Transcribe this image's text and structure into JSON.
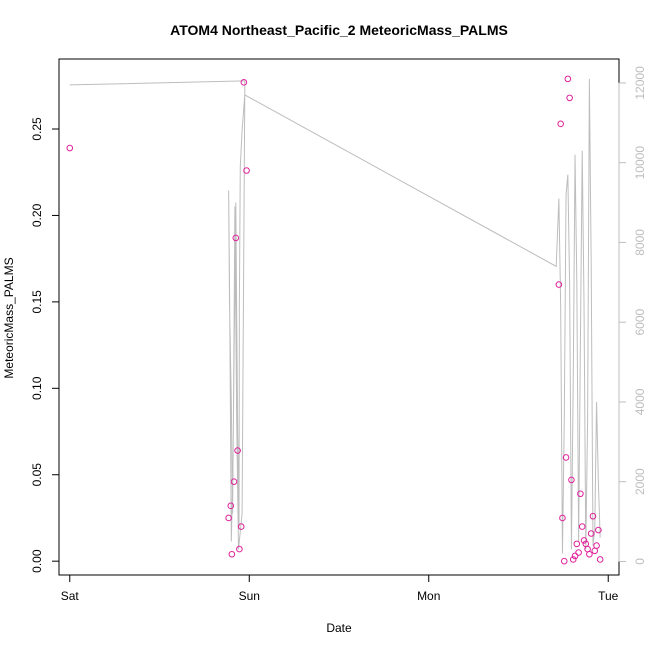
{
  "chart_data": {
    "type": "scatter",
    "title": "ATOM4 Northeast_Pacific_2 MeteoricMass_PALMS",
    "xlabel": "Date",
    "ylabel": "MeteoricMass_PALMS",
    "x_axis": {
      "unit": "days since Saturday 00:00",
      "ticks": [
        {
          "value": 0,
          "label": "Sat"
        },
        {
          "value": 1,
          "label": "Sun"
        },
        {
          "value": 2,
          "label": "Mon"
        },
        {
          "value": 3,
          "label": "Tue"
        }
      ],
      "xlim": [
        -0.06,
        3.06
      ]
    },
    "y_axis_left": {
      "ticks": [
        {
          "value": 0.0,
          "label": "0.00"
        },
        {
          "value": 0.05,
          "label": "0.05"
        },
        {
          "value": 0.1,
          "label": "0.10"
        },
        {
          "value": 0.15,
          "label": "0.15"
        },
        {
          "value": 0.2,
          "label": "0.20"
        },
        {
          "value": 0.25,
          "label": "0.25"
        }
      ],
      "ylim": [
        -0.008,
        0.2905
      ]
    },
    "y_axis_right": {
      "ticks": [
        {
          "value": 0,
          "label": "0"
        },
        {
          "value": 2000,
          "label": "2000"
        },
        {
          "value": 4000,
          "label": "4000"
        },
        {
          "value": 6000,
          "label": "6000"
        },
        {
          "value": 8000,
          "label": "8000"
        },
        {
          "value": 10000,
          "label": "10000"
        },
        {
          "value": 12000,
          "label": "12000"
        }
      ],
      "ylim": [
        -340,
        12600
      ],
      "color": "#bdbdbd"
    },
    "series": [
      {
        "marker": "open-circle",
        "color": "#e0219c",
        "axis": "left",
        "points": [
          [
            0.0,
            0.239
          ],
          [
            0.885,
            0.025
          ],
          [
            0.897,
            0.032
          ],
          [
            0.903,
            0.004
          ],
          [
            0.915,
            0.046
          ],
          [
            0.925,
            0.187
          ],
          [
            0.935,
            0.064
          ],
          [
            0.945,
            0.007
          ],
          [
            0.955,
            0.02
          ],
          [
            0.97,
            0.277
          ],
          [
            0.985,
            0.226
          ],
          [
            2.725,
            0.16
          ],
          [
            2.735,
            0.253
          ],
          [
            2.745,
            0.025
          ],
          [
            2.755,
            0.0
          ],
          [
            2.765,
            0.06
          ],
          [
            2.775,
            0.279
          ],
          [
            2.785,
            0.268
          ],
          [
            2.795,
            0.047
          ],
          [
            2.805,
            0.001
          ],
          [
            2.815,
            0.003
          ],
          [
            2.825,
            0.01
          ],
          [
            2.835,
            0.005
          ],
          [
            2.845,
            0.039
          ],
          [
            2.855,
            0.02
          ],
          [
            2.865,
            0.012
          ],
          [
            2.875,
            0.01
          ],
          [
            2.885,
            0.007
          ],
          [
            2.895,
            0.004
          ],
          [
            2.905,
            0.016
          ],
          [
            2.915,
            0.026
          ],
          [
            2.925,
            0.006
          ],
          [
            2.935,
            0.009
          ],
          [
            2.945,
            0.018
          ],
          [
            2.955,
            0.001
          ]
        ]
      },
      {
        "marker": "line",
        "color": "#bdbdbd",
        "axis": "right",
        "points": [
          [
            0.0,
            11950
          ],
          [
            0.975,
            12050
          ],
          [
            0.975,
            11700
          ],
          [
            0.96,
            10800
          ],
          [
            0.95,
            9900
          ],
          [
            0.945,
            6500
          ],
          [
            0.943,
            800
          ],
          [
            0.935,
            3500
          ],
          [
            0.925,
            9000
          ],
          [
            0.915,
            5000
          ],
          [
            0.907,
            1200
          ],
          [
            0.9,
            4000
          ],
          [
            0.89,
            6500
          ],
          [
            0.885,
            9300
          ],
          [
            0.885,
            9300
          ],
          [
            0.89,
            7000
          ],
          [
            0.9,
            500
          ],
          [
            0.91,
            2500
          ],
          [
            0.92,
            8900
          ],
          [
            0.93,
            3500
          ],
          [
            0.94,
            300
          ],
          [
            0.96,
            1200
          ],
          [
            0.975,
            11700
          ],
          [
            2.71,
            7400
          ],
          [
            2.725,
            9100
          ],
          [
            2.735,
            6400
          ],
          [
            2.745,
            200
          ],
          [
            2.755,
            3500
          ],
          [
            2.765,
            9200
          ],
          [
            2.775,
            9700
          ],
          [
            2.785,
            6900
          ],
          [
            2.795,
            300
          ],
          [
            2.805,
            4500
          ],
          [
            2.815,
            10200
          ],
          [
            2.825,
            7000
          ],
          [
            2.835,
            500
          ],
          [
            2.845,
            5500
          ],
          [
            2.855,
            10300
          ],
          [
            2.865,
            6500
          ],
          [
            2.875,
            300
          ],
          [
            2.885,
            3500
          ],
          [
            2.895,
            12100
          ],
          [
            2.905,
            7500
          ],
          [
            2.915,
            400
          ],
          [
            2.925,
            800
          ],
          [
            2.935,
            4000
          ],
          [
            2.945,
            2000
          ],
          [
            2.955,
            600
          ]
        ]
      }
    ],
    "grid": false,
    "legend": "none"
  }
}
